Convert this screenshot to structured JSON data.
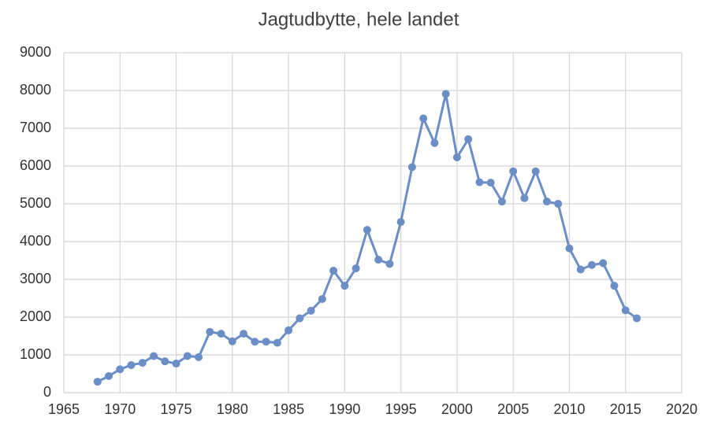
{
  "chart_data": {
    "type": "line",
    "title": "Jagtudbytte, hele landet",
    "x": [
      1968,
      1969,
      1970,
      1971,
      1972,
      1973,
      1974,
      1975,
      1976,
      1977,
      1978,
      1979,
      1980,
      1981,
      1982,
      1983,
      1984,
      1985,
      1986,
      1987,
      1988,
      1989,
      1990,
      1991,
      1992,
      1993,
      1994,
      1995,
      1996,
      1997,
      1998,
      1999,
      2000,
      2001,
      2002,
      2003,
      2004,
      2005,
      2006,
      2007,
      2008,
      2009,
      2010,
      2011,
      2012,
      2013,
      2014,
      2015,
      2016
    ],
    "values": [
      290,
      440,
      620,
      730,
      790,
      970,
      830,
      770,
      970,
      940,
      1610,
      1560,
      1360,
      1560,
      1350,
      1350,
      1320,
      1650,
      1970,
      2170,
      2480,
      3230,
      2830,
      3290,
      4310,
      3520,
      3410,
      4520,
      5970,
      7260,
      6610,
      7910,
      6230,
      6710,
      5570,
      5560,
      5060,
      5860,
      5150,
      5860,
      5060,
      5000,
      3820,
      3260,
      3380,
      3430,
      2830,
      2180,
      1970
    ],
    "color": "#6b8ec6",
    "xlim": [
      1965,
      2020
    ],
    "xticks": [
      1965,
      1970,
      1975,
      1980,
      1985,
      1990,
      1995,
      2000,
      2005,
      2010,
      2015,
      2020
    ],
    "ylim": [
      0,
      9000
    ],
    "yticks": [
      0,
      1000,
      2000,
      3000,
      4000,
      5000,
      6000,
      7000,
      8000,
      9000
    ],
    "grid": true
  }
}
